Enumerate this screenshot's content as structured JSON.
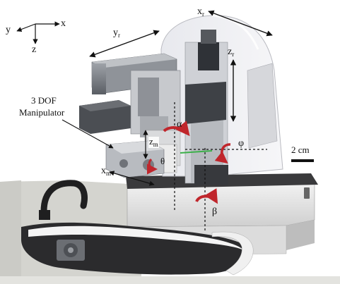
{
  "axes_frame": {
    "x": "x",
    "y": "y",
    "z": "z"
  },
  "device_axes": {
    "xr_base": "x",
    "xr_sub": "r",
    "yr_base": "y",
    "yr_sub": "r",
    "zr_base": "z",
    "zr_sub": "r",
    "zm_base": "z",
    "zm_sub": "m",
    "xm_base": "x",
    "xm_sub": "m"
  },
  "rotations": {
    "alpha": "α",
    "phi": "φ",
    "theta": "θ",
    "beta": "β"
  },
  "manipulator_label_line1": "3 DOF",
  "manipulator_label_line2": "Manipulator",
  "scale_bar_label": "2 cm",
  "colors": {
    "rotation_arrow": "#c0262c",
    "base_plate": "#3a3a3c",
    "frame_white": "#e9e9ec",
    "dark_metal": "#4a4d52",
    "table": "#d8d8d4"
  }
}
